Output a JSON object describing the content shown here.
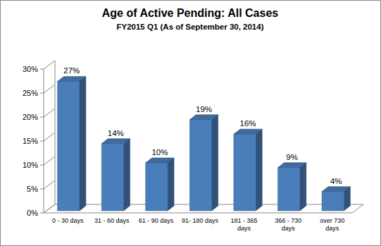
{
  "chart_data": {
    "type": "bar",
    "title": "Age of Active Pending: All Cases",
    "subtitle": "FY2015 Q1 (As of September 30, 2014)",
    "categories": [
      "0 - 30 days",
      "31 - 60 days",
      "61 - 90 days",
      "91- 180 days",
      "181 - 365 days",
      "366 - 730 days",
      "over 730 days"
    ],
    "values": [
      27,
      14,
      10,
      19,
      16,
      9,
      4
    ],
    "value_labels": [
      "27%",
      "14%",
      "10%",
      "19%",
      "16%",
      "9%",
      "4%"
    ],
    "color": "#4a7ebb",
    "ylim": [
      0,
      30
    ],
    "yticks": [
      {
        "value": 0,
        "label": "0%"
      },
      {
        "value": 5,
        "label": "5%"
      },
      {
        "value": 10,
        "label": "10%"
      },
      {
        "value": 15,
        "label": "15%"
      },
      {
        "value": 20,
        "label": "20%"
      },
      {
        "value": 25,
        "label": "25%"
      },
      {
        "value": 30,
        "label": "30%"
      }
    ],
    "grid": false,
    "data_labels": true
  }
}
